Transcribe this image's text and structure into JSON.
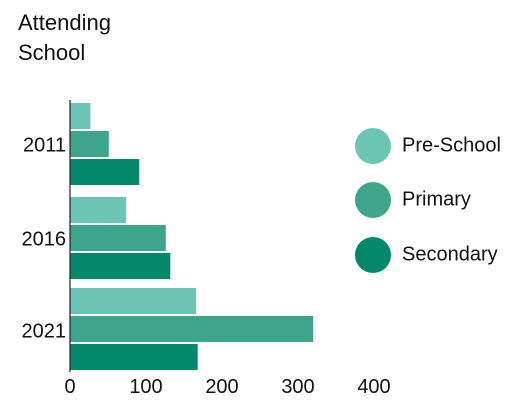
{
  "chart_data": {
    "type": "bar",
    "orientation": "horizontal",
    "title": [
      "Attending",
      "School"
    ],
    "categories": [
      "2011",
      "2016",
      "2021"
    ],
    "series": [
      {
        "name": "Pre-School",
        "color": "#6cc4b2",
        "values": [
          27,
          74,
          166
        ]
      },
      {
        "name": "Primary",
        "color": "#3ea58a",
        "values": [
          51,
          126,
          320
        ]
      },
      {
        "name": "Secondary",
        "color": "#03896a",
        "values": [
          91,
          132,
          168
        ]
      }
    ],
    "x_ticks": [
      "0",
      "100",
      "200",
      "300",
      "400"
    ],
    "xlim": [
      0,
      400
    ],
    "grid": false,
    "legend_position": "right"
  }
}
